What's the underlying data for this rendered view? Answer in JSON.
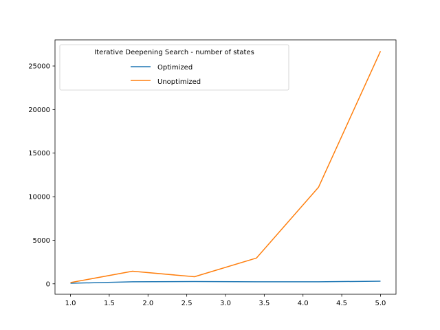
{
  "chart_data": {
    "type": "line",
    "x": [
      1.0,
      1.8,
      2.6,
      3.4,
      4.2,
      5.0
    ],
    "series": [
      {
        "name": "Optimized",
        "color": "#1f77b4",
        "values": [
          60,
          230,
          260,
          230,
          230,
          300
        ]
      },
      {
        "name": "Unoptimized",
        "color": "#ff7f0e",
        "values": [
          140,
          1440,
          810,
          2960,
          11080,
          26700
        ]
      }
    ],
    "legend_title": "Iterative Deepening Search - number of states",
    "legend_position": "top-left",
    "xlim": [
      0.8,
      5.2
    ],
    "ylim": [
      -1200,
      28000
    ],
    "xticks": [
      1.0,
      1.5,
      2.0,
      2.5,
      3.0,
      3.5,
      4.0,
      4.5,
      5.0
    ],
    "xtick_labels": [
      "1.0",
      "1.5",
      "2.0",
      "2.5",
      "3.0",
      "3.5",
      "4.0",
      "4.5",
      "5.0"
    ],
    "yticks": [
      0,
      5000,
      10000,
      15000,
      20000,
      25000
    ],
    "ytick_labels": [
      "0",
      "5000",
      "10000",
      "15000",
      "20000",
      "25000"
    ],
    "grid": false
  }
}
